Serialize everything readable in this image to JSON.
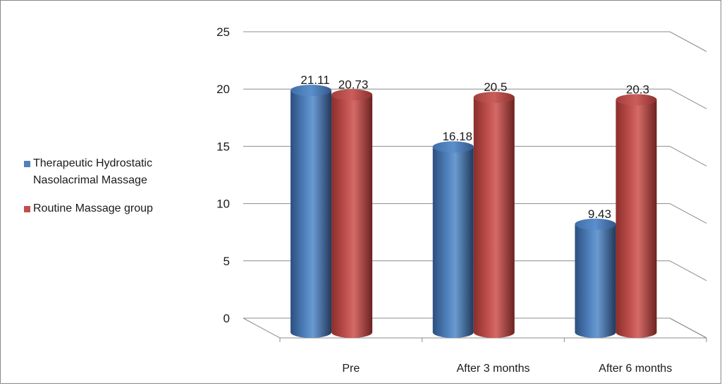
{
  "chart_data": {
    "type": "bar",
    "title": "",
    "xlabel": "",
    "ylabel": "",
    "categories": [
      "Pre",
      "After 3 months",
      "After 6 months"
    ],
    "ylim": [
      0,
      25
    ],
    "yticks": [
      "0",
      "5",
      "10",
      "15",
      "20",
      "25"
    ],
    "grid": true,
    "legend_position": "left",
    "series": [
      {
        "name": "Therapeutic Hydrostatic Nasolacrimal Massage",
        "values": [
          21.11,
          16.18,
          9.43
        ],
        "labels": [
          "21.11",
          "16.18",
          "9.43"
        ],
        "color": "#4F81BD"
      },
      {
        "name": "Routine Massage group",
        "values": [
          20.73,
          20.5,
          20.3
        ],
        "labels": [
          "20.73",
          "20.5",
          "20.3"
        ],
        "color": "#C0504D"
      }
    ]
  }
}
